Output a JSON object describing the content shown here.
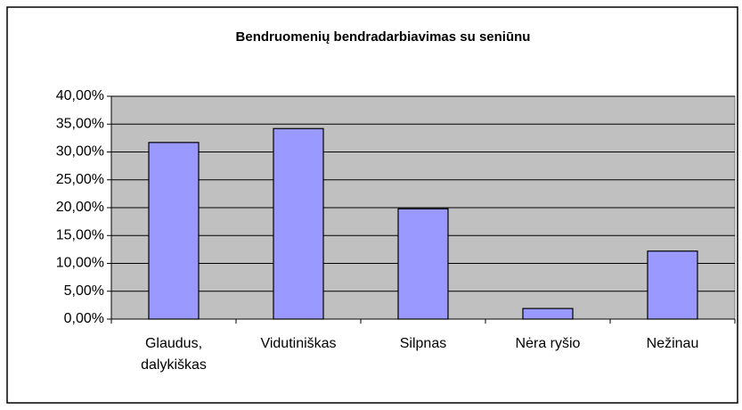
{
  "chart_data": {
    "type": "bar",
    "title": "Bendruomenių bendradarbiavimas su seniūnu",
    "categories": [
      "Glaudus, dalykiškas",
      "Vidutiniškas",
      "Silpnas",
      "Nėra ryšio",
      "Nežinau"
    ],
    "values": [
      31.7,
      34.2,
      19.8,
      1.9,
      12.2
    ],
    "color": "#9999ff",
    "ylim": [
      0,
      40
    ],
    "yticks": [
      {
        "value": 0,
        "label": "0,00%"
      },
      {
        "value": 5,
        "label": "5,00%"
      },
      {
        "value": 10,
        "label": "10,00%"
      },
      {
        "value": 15,
        "label": "15,00%"
      },
      {
        "value": 20,
        "label": "20,00%"
      },
      {
        "value": 25,
        "label": "25,00%"
      },
      {
        "value": 30,
        "label": "30,00%"
      },
      {
        "value": 35,
        "label": "35,00%"
      },
      {
        "value": 40,
        "label": "40,00%"
      }
    ],
    "grid": true
  }
}
